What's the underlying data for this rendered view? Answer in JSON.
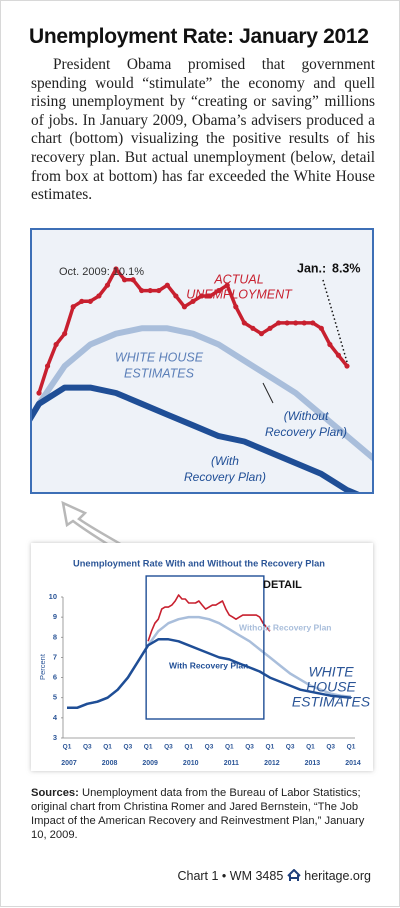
{
  "title": "Unemployment Rate: January 2012",
  "intro": "President Obama promised that government spending would “stimulate” the economy and quell rising unemployment by “creating or saving” millions of jobs. In January 2009, Obama’s advisers produced a chart (bottom) visualizing the positive results of his recovery plan. But actual unemployment (below, detail from box at bottom) has far exceeded the White House estimates.",
  "chart_data": [
    {
      "type": "line",
      "series": [
        {
          "color": "#c8202f",
          "values": [
            7.8,
            8.3,
            8.7,
            8.9,
            9.4,
            9.5,
            9.5,
            9.6,
            9.8,
            10.1,
            9.9,
            9.9,
            9.7,
            9.7,
            9.7,
            9.8,
            9.6,
            9.4,
            9.5,
            9.6,
            9.6,
            9.7,
            9.8,
            9.4,
            9.1,
            9.0,
            8.9,
            9.0,
            9.1,
            9.1,
            9.1,
            9.1,
            9.1,
            9.0,
            8.7,
            8.5,
            8.3
          ]
        }
      ],
      "annotations": {
        "actual_lines": [
          "ACTUAL",
          "UNEMPLOYMENT"
        ],
        "white_house_lines": [
          "WHITE HOUSE",
          "ESTIMATES"
        ],
        "without_lines": [
          "(Without",
          "Recovery Plan)"
        ],
        "with_lines": [
          "(With",
          "Recovery Plan)"
        ],
        "peak": "Oct. 2009: 10.1%",
        "latest_label": "Jan.:",
        "latest_value": "8.3%"
      }
    },
    {
      "type": "line",
      "title": "Unemployment Rate With and Without the Recovery Plan",
      "ylabel": "Percent",
      "detail_label": "DETAIL",
      "estimates_lines": [
        "WHITE",
        "HOUSE",
        "ESTIMATES"
      ],
      "categories": [
        "Q1",
        null,
        "Q3",
        null,
        "Q1",
        null,
        "Q3",
        null,
        "Q1",
        null,
        "Q3",
        null,
        "Q1",
        null,
        "Q3",
        null,
        "Q1",
        null,
        "Q3",
        null,
        "Q1",
        null,
        "Q3",
        null,
        "Q1",
        null,
        "Q3",
        null,
        "Q1"
      ],
      "year_labels": [
        "2007",
        "2008",
        "2009",
        "2010",
        "2011",
        "2012",
        "2013",
        "2014"
      ],
      "ylim": [
        3,
        10
      ],
      "yticks": [
        3,
        4,
        5,
        6,
        7,
        8,
        9,
        10
      ],
      "series": [
        {
          "name": "Without Recovery Plan",
          "color": "#a9bedb",
          "values": [
            4.5,
            4.5,
            4.7,
            4.8,
            5.0,
            5.4,
            6.0,
            6.8,
            7.6,
            8.3,
            8.7,
            8.9,
            9.0,
            9.0,
            8.9,
            8.7,
            8.4,
            8.1,
            7.8,
            7.4,
            7.0,
            6.6,
            6.2,
            5.9,
            5.6,
            5.4,
            5.2,
            5.1,
            5.05
          ]
        },
        {
          "name": "With Recovery Plan",
          "color": "#1f4e96",
          "values": [
            4.5,
            4.5,
            4.7,
            4.8,
            5.0,
            5.4,
            6.0,
            6.8,
            7.6,
            7.9,
            7.9,
            7.8,
            7.6,
            7.4,
            7.2,
            7.0,
            6.9,
            6.7,
            6.5,
            6.3,
            6.0,
            5.8,
            5.6,
            5.4,
            5.3,
            5.2,
            5.1,
            5.05,
            5.0
          ]
        }
      ]
    }
  ],
  "sources": {
    "label": "Sources:",
    "text": "Unemployment data from the Bureau of Labor Statistics; original chart from Christina Romer and Jared Bernstein, “The Job Impact of the American Recovery and Reinvestment Plan,” January 10, 2009."
  },
  "footer": {
    "chart": "Chart 1 • WM 3485",
    "site": "heritage.org"
  }
}
